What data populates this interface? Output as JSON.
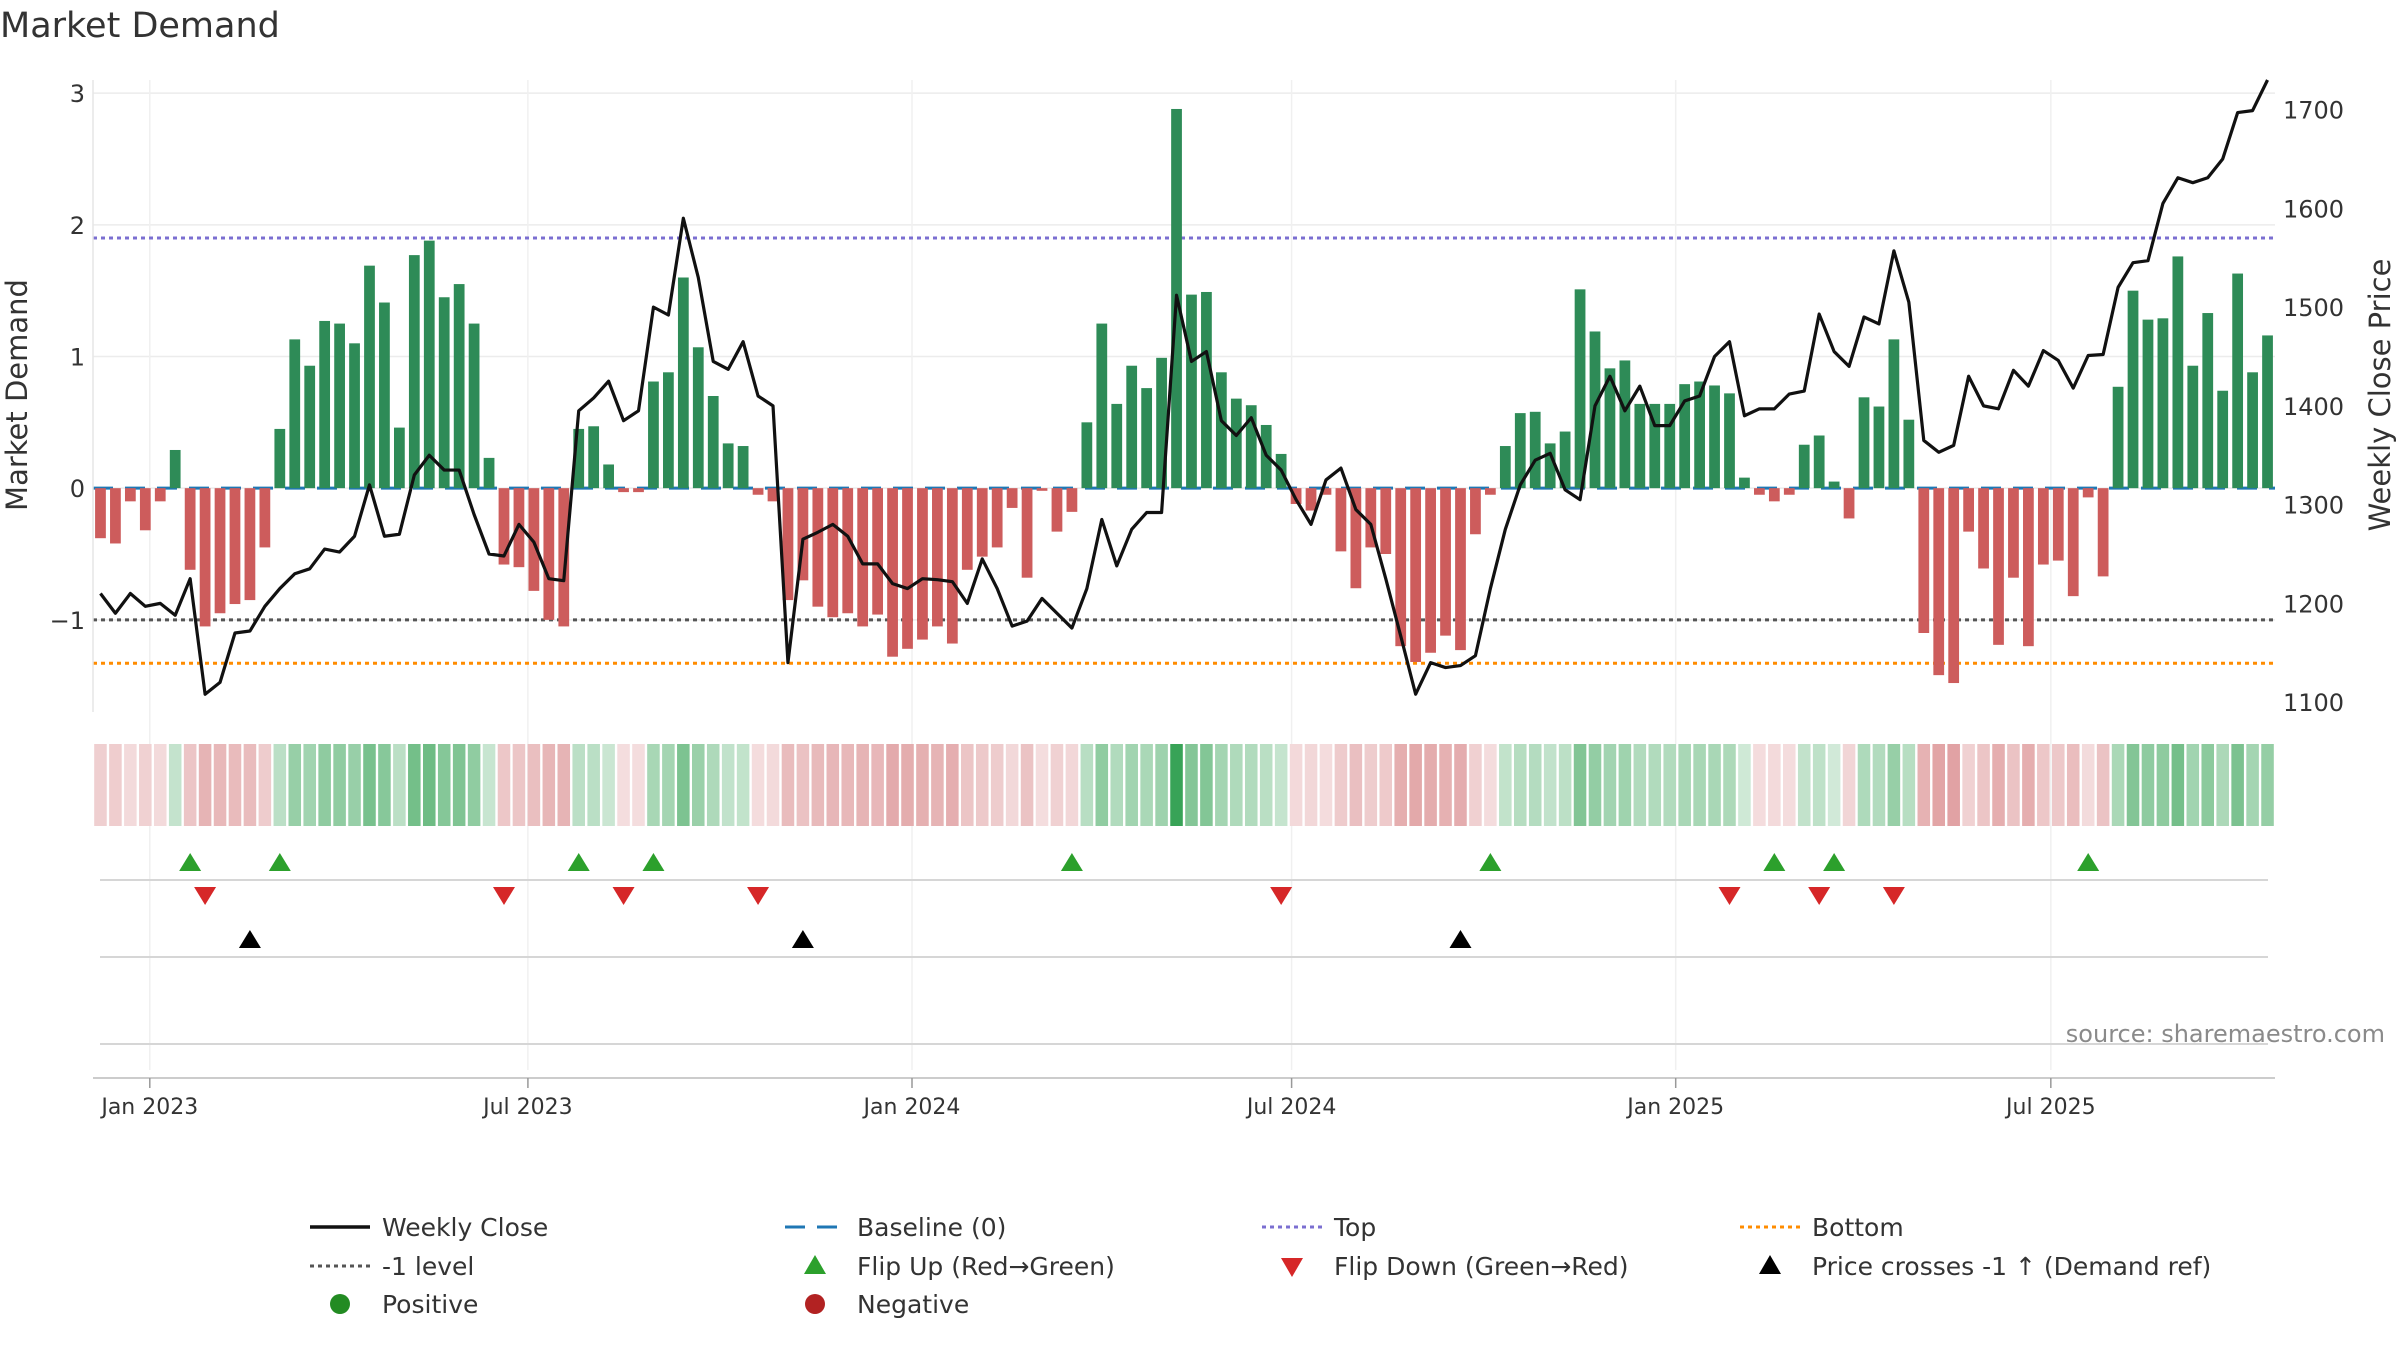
{
  "chart_data": {
    "type": "bar",
    "title": "Market Demand",
    "source": "source: sharemaestro.com",
    "ylabel_left": "Market Demand",
    "ylabel_right": "Weekly Close Price",
    "ylim_left": [
      -1.7,
      3.1
    ],
    "ylim_right": [
      1090,
      1730
    ],
    "yticks_left": [
      "3",
      "2",
      "1",
      "0",
      "−1"
    ],
    "ytick_values_left": [
      3,
      2,
      1,
      0,
      -1
    ],
    "yticks_right": [
      "1700",
      "1600",
      "1500",
      "1400",
      "1300",
      "1200",
      "1100"
    ],
    "ytick_values_right": [
      1700,
      1600,
      1500,
      1400,
      1300,
      1200,
      1100
    ],
    "x_tick_labels": [
      "Jan 2023",
      "Jul 2023",
      "Jan 2024",
      "Jul 2024",
      "Jan 2025",
      "Jul 2025"
    ],
    "x_tick_weeks": [
      3.3,
      28.6,
      54.3,
      79.7,
      105.4,
      130.5
    ],
    "lines": {
      "top": 1.9,
      "bottom": -1.33,
      "minus_one": -1.0,
      "baseline": 0
    },
    "demand": [
      -0.38,
      -0.42,
      -0.1,
      -0.32,
      -0.1,
      0.29,
      -0.62,
      -1.05,
      -0.95,
      -0.88,
      -0.85,
      -0.45,
      0.45,
      1.13,
      0.93,
      1.27,
      1.25,
      1.1,
      1.69,
      1.41,
      0.46,
      1.77,
      1.88,
      1.45,
      1.55,
      1.25,
      0.23,
      -0.58,
      -0.6,
      -0.78,
      -1.0,
      -1.05,
      0.45,
      0.47,
      0.18,
      -0.03,
      -0.03,
      0.81,
      0.88,
      1.6,
      1.07,
      0.7,
      0.34,
      0.32,
      -0.05,
      -0.1,
      -0.85,
      -0.7,
      -0.9,
      -0.98,
      -0.95,
      -1.05,
      -0.96,
      -1.28,
      -1.22,
      -1.15,
      -1.05,
      -1.18,
      -0.62,
      -0.52,
      -0.45,
      -0.15,
      -0.68,
      -0.02,
      -0.33,
      -0.18,
      0.5,
      1.25,
      0.64,
      0.93,
      0.76,
      0.99,
      2.88,
      1.47,
      1.49,
      0.88,
      0.68,
      0.63,
      0.48,
      0.26,
      -0.12,
      -0.17,
      -0.05,
      -0.48,
      -0.76,
      -0.45,
      -0.5,
      -1.2,
      -1.32,
      -1.25,
      -1.12,
      -1.23,
      -0.35,
      -0.05,
      0.32,
      0.57,
      0.58,
      0.34,
      0.43,
      1.51,
      1.19,
      0.91,
      0.97,
      0.64,
      0.64,
      0.64,
      0.79,
      0.81,
      0.78,
      0.72,
      0.08,
      -0.05,
      -0.1,
      -0.05,
      0.33,
      0.4,
      0.05,
      -0.23,
      0.69,
      0.62,
      1.13,
      0.52,
      -1.1,
      -1.42,
      -1.48,
      -0.33,
      -0.61,
      -1.19,
      -0.68,
      -1.2,
      -0.58,
      -0.55,
      -0.82,
      -0.07,
      -0.67,
      0.77,
      1.5,
      1.28,
      1.29,
      1.76,
      0.93,
      1.33,
      0.74,
      1.63,
      0.88,
      1.16
    ],
    "weekly_close": [
      1210,
      1190,
      1210,
      1197,
      1200,
      1188,
      1225,
      1108,
      1120,
      1170,
      1172,
      1197,
      1215,
      1230,
      1235,
      1255,
      1252,
      1268,
      1320,
      1268,
      1270,
      1330,
      1350,
      1335,
      1335,
      1290,
      1250,
      1248,
      1280,
      1262,
      1225,
      1223,
      1395,
      1408,
      1425,
      1385,
      1395,
      1500,
      1492,
      1590,
      1530,
      1445,
      1437,
      1465,
      1410,
      1400,
      1140,
      1265,
      1272,
      1280,
      1268,
      1240,
      1240,
      1220,
      1215,
      1225,
      1224,
      1222,
      1200,
      1245,
      1215,
      1177,
      1182,
      1205,
      1190,
      1175,
      1215,
      1285,
      1238,
      1275,
      1292,
      1292,
      1512,
      1445,
      1455,
      1385,
      1370,
      1388,
      1350,
      1335,
      1305,
      1280,
      1325,
      1337,
      1295,
      1280,
      1225,
      1167,
      1108,
      1140,
      1135,
      1137,
      1147,
      1215,
      1275,
      1320,
      1345,
      1352,
      1315,
      1305,
      1400,
      1430,
      1395,
      1420,
      1380,
      1380,
      1405,
      1410,
      1450,
      1465,
      1390,
      1397,
      1397,
      1412,
      1415,
      1493,
      1455,
      1440,
      1490,
      1483,
      1557,
      1505,
      1365,
      1353,
      1360,
      1430,
      1400,
      1397,
      1436,
      1420,
      1456,
      1446,
      1418,
      1451,
      1452,
      1520,
      1545,
      1547,
      1605,
      1631,
      1626,
      1631,
      1650,
      1697,
      1699,
      1730
    ],
    "flip_up_weeks": [
      6,
      12,
      32,
      37,
      65,
      93,
      112,
      116,
      133
    ],
    "flip_down_weeks": [
      7,
      27,
      35,
      44,
      79,
      109,
      115,
      120
    ],
    "price_cross_weeks": [
      10,
      47,
      91
    ],
    "legend": [
      {
        "label": "Weekly Close",
        "symbol": "line",
        "color": "#111111"
      },
      {
        "label": "Baseline (0)",
        "symbol": "dash",
        "color": "#1f77b4"
      },
      {
        "label": "Top",
        "symbol": "dotted",
        "color": "#7b6fd1"
      },
      {
        "label": "Bottom",
        "symbol": "dotted",
        "color": "#ff8c00"
      },
      {
        "label": "-1 level",
        "symbol": "dotted",
        "color": "#555555"
      },
      {
        "label": "Flip Up (Red→Green)",
        "symbol": "triangle-up",
        "color": "#2ca02c"
      },
      {
        "label": "Flip Down (Green→Red)",
        "symbol": "triangle-down",
        "color": "#d62728"
      },
      {
        "label": "Price crosses -1 ↑ (Demand ref)",
        "symbol": "triangle-up",
        "color": "#000000"
      },
      {
        "label": "Positive",
        "symbol": "circle",
        "color": "#228b22"
      },
      {
        "label": "Negative",
        "symbol": "circle",
        "color": "#b22222"
      }
    ],
    "colors": {
      "positive_bar": "#2e8b57",
      "negative_bar": "#cd5c5c",
      "price_line": "#111111",
      "baseline": "#1f77b4",
      "top": "#7b6fd1",
      "bottom": "#ff8c00",
      "minus_one": "#555555",
      "flip_up": "#2ca02c",
      "flip_down": "#d62728",
      "cross": "#000000"
    }
  }
}
